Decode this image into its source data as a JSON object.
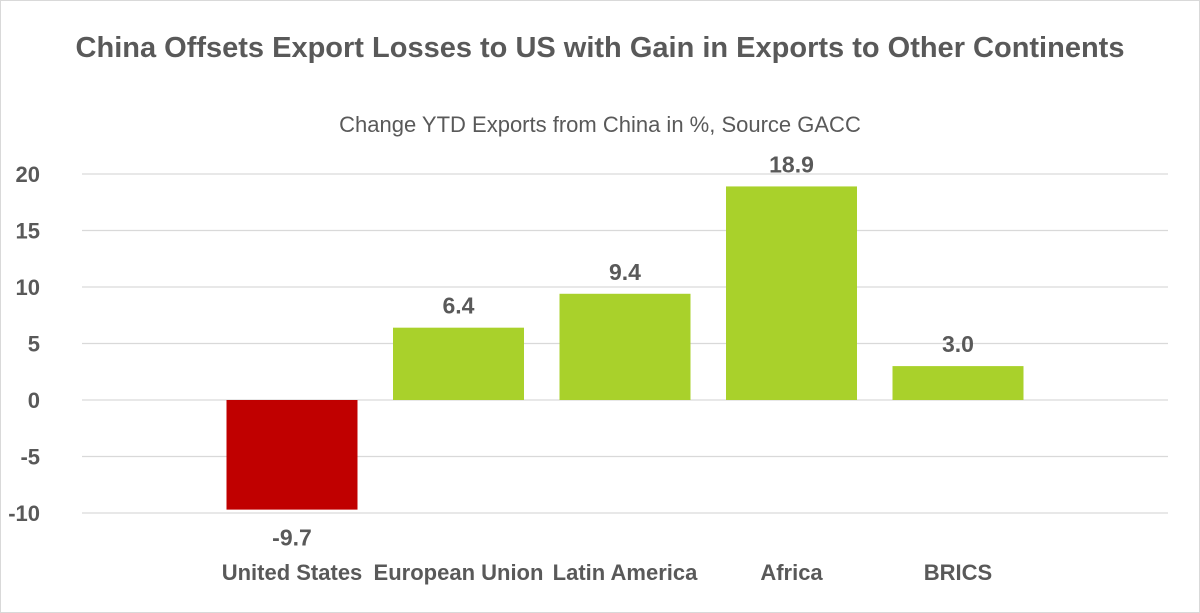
{
  "chart_data": {
    "type": "bar",
    "title": "China Offsets Export Losses to US with Gain in Exports to Other Continents",
    "subtitle": "Change YTD Exports from China in %, Source GACC",
    "categories": [
      "United States",
      "European Union",
      "Latin America",
      "Africa",
      "BRICS"
    ],
    "values": [
      -9.7,
      6.4,
      9.4,
      18.9,
      3.0
    ],
    "data_labels": [
      "-9.7",
      "6.4",
      "9.4",
      "18.9",
      "3.0"
    ],
    "ylim": [
      -10,
      20
    ],
    "yticks": [
      20,
      15,
      10,
      5,
      0,
      -5,
      -10
    ],
    "grid": true,
    "colors": {
      "negative": "#c00000",
      "positive": "#a9d12b",
      "grid": "#d9d9d9",
      "text": "#595959"
    }
  }
}
